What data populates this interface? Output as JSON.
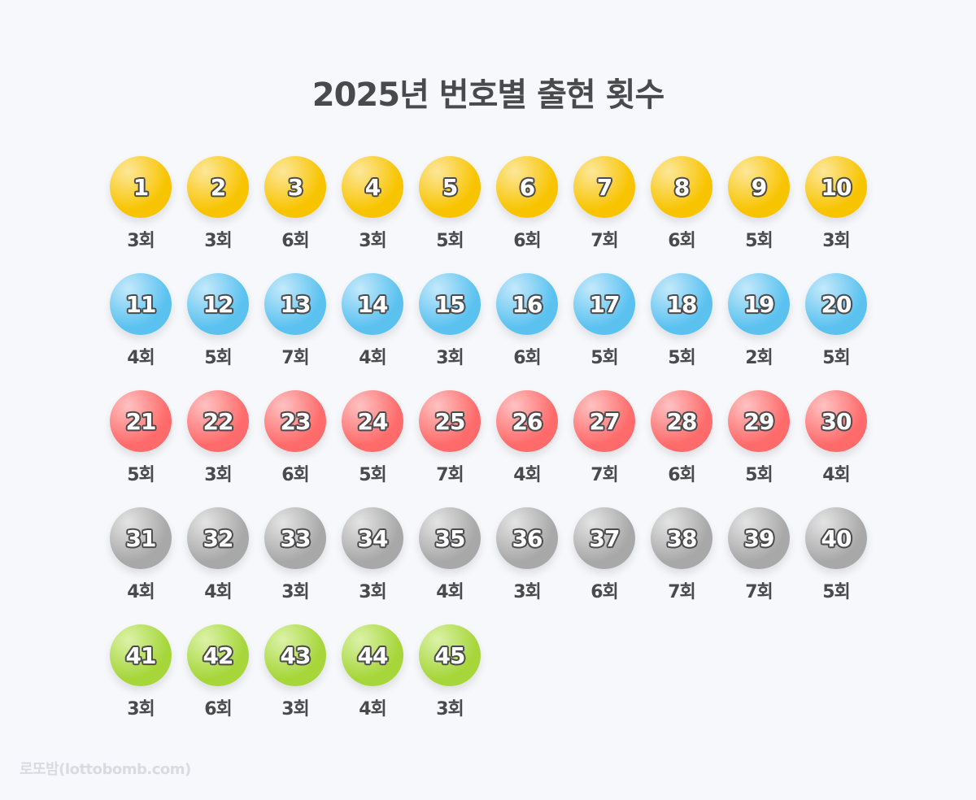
{
  "title": "2025년 번호별 출현 횟수",
  "footer": "로또밤(lottobomb.com)",
  "count_suffix": "회",
  "colors": {
    "yellow": "#f8c400",
    "blue": "#5bc2f0",
    "red": "#ff6b6b",
    "gray": "#a8a8a8",
    "green": "#a6d63a",
    "text": "#4a4a4c",
    "background": "#f6f8fc"
  },
  "balls": [
    {
      "number": "1",
      "count": "3회",
      "color": "yellow"
    },
    {
      "number": "2",
      "count": "3회",
      "color": "yellow"
    },
    {
      "number": "3",
      "count": "6회",
      "color": "yellow"
    },
    {
      "number": "4",
      "count": "3회",
      "color": "yellow"
    },
    {
      "number": "5",
      "count": "5회",
      "color": "yellow"
    },
    {
      "number": "6",
      "count": "6회",
      "color": "yellow"
    },
    {
      "number": "7",
      "count": "7회",
      "color": "yellow"
    },
    {
      "number": "8",
      "count": "6회",
      "color": "yellow"
    },
    {
      "number": "9",
      "count": "5회",
      "color": "yellow"
    },
    {
      "number": "10",
      "count": "3회",
      "color": "yellow"
    },
    {
      "number": "11",
      "count": "4회",
      "color": "blue"
    },
    {
      "number": "12",
      "count": "5회",
      "color": "blue"
    },
    {
      "number": "13",
      "count": "7회",
      "color": "blue"
    },
    {
      "number": "14",
      "count": "4회",
      "color": "blue"
    },
    {
      "number": "15",
      "count": "3회",
      "color": "blue"
    },
    {
      "number": "16",
      "count": "6회",
      "color": "blue"
    },
    {
      "number": "17",
      "count": "5회",
      "color": "blue"
    },
    {
      "number": "18",
      "count": "5회",
      "color": "blue"
    },
    {
      "number": "19",
      "count": "2회",
      "color": "blue"
    },
    {
      "number": "20",
      "count": "5회",
      "color": "blue"
    },
    {
      "number": "21",
      "count": "5회",
      "color": "red"
    },
    {
      "number": "22",
      "count": "3회",
      "color": "red"
    },
    {
      "number": "23",
      "count": "6회",
      "color": "red"
    },
    {
      "number": "24",
      "count": "5회",
      "color": "red"
    },
    {
      "number": "25",
      "count": "7회",
      "color": "red"
    },
    {
      "number": "26",
      "count": "4회",
      "color": "red"
    },
    {
      "number": "27",
      "count": "7회",
      "color": "red"
    },
    {
      "number": "28",
      "count": "6회",
      "color": "red"
    },
    {
      "number": "29",
      "count": "5회",
      "color": "red"
    },
    {
      "number": "30",
      "count": "4회",
      "color": "red"
    },
    {
      "number": "31",
      "count": "4회",
      "color": "gray"
    },
    {
      "number": "32",
      "count": "4회",
      "color": "gray"
    },
    {
      "number": "33",
      "count": "3회",
      "color": "gray"
    },
    {
      "number": "34",
      "count": "3회",
      "color": "gray"
    },
    {
      "number": "35",
      "count": "4회",
      "color": "gray"
    },
    {
      "number": "36",
      "count": "3회",
      "color": "gray"
    },
    {
      "number": "37",
      "count": "6회",
      "color": "gray"
    },
    {
      "number": "38",
      "count": "7회",
      "color": "gray"
    },
    {
      "number": "39",
      "count": "7회",
      "color": "gray"
    },
    {
      "number": "40",
      "count": "5회",
      "color": "gray"
    },
    {
      "number": "41",
      "count": "3회",
      "color": "green"
    },
    {
      "number": "42",
      "count": "6회",
      "color": "green"
    },
    {
      "number": "43",
      "count": "3회",
      "color": "green"
    },
    {
      "number": "44",
      "count": "4회",
      "color": "green"
    },
    {
      "number": "45",
      "count": "3회",
      "color": "green"
    }
  ]
}
